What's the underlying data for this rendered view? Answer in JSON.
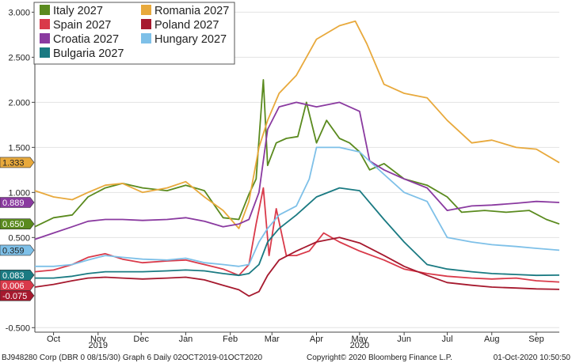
{
  "chart_data": {
    "type": "line",
    "ylim": [
      -0.55,
      3.1
    ],
    "y_ticks": [
      -0.5,
      0.5,
      1.0,
      1.5,
      2.0,
      2.5,
      3.0
    ],
    "y_tick_labels": [
      "-0.500",
      "0.500",
      "1.000",
      "1.500",
      "2.000",
      "2.500",
      "3.000"
    ],
    "x_range": [
      "2019-10-02",
      "2020-10-01"
    ],
    "months": [
      {
        "label": "Oct",
        "date": "2019-10-15"
      },
      {
        "label": "Nov",
        "date": "2019-11-15"
      },
      {
        "label": "Dec",
        "date": "2019-12-15"
      },
      {
        "label": "Jan",
        "date": "2020-01-15"
      },
      {
        "label": "Feb",
        "date": "2020-02-15"
      },
      {
        "label": "Mar",
        "date": "2020-03-15"
      },
      {
        "label": "Apr",
        "date": "2020-04-15"
      },
      {
        "label": "May",
        "date": "2020-05-15"
      },
      {
        "label": "Jun",
        "date": "2020-06-15"
      },
      {
        "label": "Jul",
        "date": "2020-07-15"
      },
      {
        "label": "Aug",
        "date": "2020-08-15"
      },
      {
        "label": "Sep",
        "date": "2020-09-15"
      }
    ],
    "year_labels": [
      {
        "label": "2019",
        "date": "2019-11-15"
      },
      {
        "label": "2020",
        "date": "2020-05-15"
      }
    ],
    "series": [
      {
        "name": "Italy 2027",
        "color": "#5a8a1e",
        "last": "0.650",
        "tag_text": "#ffffff",
        "points": [
          [
            "2019-10-02",
            0.62
          ],
          [
            "2019-10-15",
            0.72
          ],
          [
            "2019-10-28",
            0.75
          ],
          [
            "2019-11-08",
            0.95
          ],
          [
            "2019-11-20",
            1.05
          ],
          [
            "2019-12-02",
            1.1
          ],
          [
            "2019-12-16",
            1.05
          ],
          [
            "2020-01-02",
            1.02
          ],
          [
            "2020-01-15",
            1.08
          ],
          [
            "2020-01-28",
            1.02
          ],
          [
            "2020-02-10",
            0.72
          ],
          [
            "2020-02-21",
            0.7
          ],
          [
            "2020-02-28",
            0.98
          ],
          [
            "2020-03-04",
            1.15
          ],
          [
            "2020-03-09",
            2.25
          ],
          [
            "2020-03-12",
            1.3
          ],
          [
            "2020-03-18",
            1.55
          ],
          [
            "2020-03-25",
            1.6
          ],
          [
            "2020-04-02",
            1.62
          ],
          [
            "2020-04-08",
            2.0
          ],
          [
            "2020-04-15",
            1.55
          ],
          [
            "2020-04-22",
            1.8
          ],
          [
            "2020-05-01",
            1.6
          ],
          [
            "2020-05-08",
            1.55
          ],
          [
            "2020-05-15",
            1.45
          ],
          [
            "2020-05-22",
            1.25
          ],
          [
            "2020-06-01",
            1.32
          ],
          [
            "2020-06-15",
            1.15
          ],
          [
            "2020-07-01",
            1.08
          ],
          [
            "2020-07-15",
            0.95
          ],
          [
            "2020-07-25",
            0.78
          ],
          [
            "2020-08-10",
            0.8
          ],
          [
            "2020-08-25",
            0.78
          ],
          [
            "2020-09-10",
            0.8
          ],
          [
            "2020-09-22",
            0.7
          ],
          [
            "2020-10-01",
            0.65
          ]
        ]
      },
      {
        "name": "Romania 2027",
        "color": "#e8a93c",
        "last": "1.333",
        "tag_text": "#222222",
        "points": [
          [
            "2019-10-02",
            1.02
          ],
          [
            "2019-10-15",
            0.95
          ],
          [
            "2019-10-28",
            0.92
          ],
          [
            "2019-11-08",
            1.0
          ],
          [
            "2019-11-20",
            1.08
          ],
          [
            "2019-12-02",
            1.1
          ],
          [
            "2019-12-16",
            1.0
          ],
          [
            "2020-01-02",
            1.05
          ],
          [
            "2020-01-15",
            1.12
          ],
          [
            "2020-01-28",
            0.95
          ],
          [
            "2020-02-10",
            0.8
          ],
          [
            "2020-02-21",
            0.6
          ],
          [
            "2020-02-28",
            0.9
          ],
          [
            "2020-03-06",
            1.5
          ],
          [
            "2020-03-12",
            1.8
          ],
          [
            "2020-03-20",
            2.1
          ],
          [
            "2020-04-01",
            2.3
          ],
          [
            "2020-04-15",
            2.7
          ],
          [
            "2020-05-01",
            2.85
          ],
          [
            "2020-05-12",
            2.9
          ],
          [
            "2020-05-20",
            2.65
          ],
          [
            "2020-06-01",
            2.2
          ],
          [
            "2020-06-15",
            2.1
          ],
          [
            "2020-07-01",
            2.05
          ],
          [
            "2020-07-15",
            1.8
          ],
          [
            "2020-08-01",
            1.55
          ],
          [
            "2020-08-15",
            1.58
          ],
          [
            "2020-09-01",
            1.5
          ],
          [
            "2020-09-15",
            1.48
          ],
          [
            "2020-10-01",
            1.33
          ]
        ]
      },
      {
        "name": "Spain 2027",
        "color": "#d93a4a",
        "last": "0.006",
        "tag_text": "#ffffff",
        "points": [
          [
            "2019-10-02",
            0.12
          ],
          [
            "2019-10-15",
            0.14
          ],
          [
            "2019-10-28",
            0.2
          ],
          [
            "2019-11-08",
            0.28
          ],
          [
            "2019-11-20",
            0.32
          ],
          [
            "2019-12-02",
            0.26
          ],
          [
            "2019-12-16",
            0.22
          ],
          [
            "2020-01-02",
            0.24
          ],
          [
            "2020-01-15",
            0.25
          ],
          [
            "2020-01-28",
            0.2
          ],
          [
            "2020-02-10",
            0.15
          ],
          [
            "2020-02-21",
            0.08
          ],
          [
            "2020-02-28",
            0.2
          ],
          [
            "2020-03-04",
            0.65
          ],
          [
            "2020-03-09",
            1.05
          ],
          [
            "2020-03-13",
            0.3
          ],
          [
            "2020-03-18",
            0.82
          ],
          [
            "2020-03-25",
            0.3
          ],
          [
            "2020-04-01",
            0.3
          ],
          [
            "2020-04-10",
            0.35
          ],
          [
            "2020-04-20",
            0.55
          ],
          [
            "2020-05-01",
            0.45
          ],
          [
            "2020-05-15",
            0.35
          ],
          [
            "2020-06-01",
            0.25
          ],
          [
            "2020-06-15",
            0.15
          ],
          [
            "2020-07-01",
            0.1
          ],
          [
            "2020-07-15",
            0.07
          ],
          [
            "2020-08-01",
            0.05
          ],
          [
            "2020-08-15",
            0.04
          ],
          [
            "2020-09-01",
            0.05
          ],
          [
            "2020-09-15",
            0.02
          ],
          [
            "2020-10-01",
            0.006
          ]
        ]
      },
      {
        "name": "Poland 2027",
        "color": "#a6192e",
        "last": "-0.075",
        "tag_text": "#ffffff",
        "points": [
          [
            "2019-10-02",
            -0.05
          ],
          [
            "2019-10-15",
            -0.02
          ],
          [
            "2019-10-28",
            0.02
          ],
          [
            "2019-11-08",
            0.05
          ],
          [
            "2019-11-20",
            0.06
          ],
          [
            "2019-12-02",
            0.05
          ],
          [
            "2019-12-16",
            0.04
          ],
          [
            "2020-01-02",
            0.05
          ],
          [
            "2020-01-15",
            0.06
          ],
          [
            "2020-01-28",
            0.03
          ],
          [
            "2020-02-10",
            -0.03
          ],
          [
            "2020-02-21",
            -0.08
          ],
          [
            "2020-02-28",
            -0.15
          ],
          [
            "2020-03-06",
            -0.1
          ],
          [
            "2020-03-12",
            0.08
          ],
          [
            "2020-03-20",
            0.25
          ],
          [
            "2020-04-01",
            0.35
          ],
          [
            "2020-04-15",
            0.45
          ],
          [
            "2020-05-01",
            0.5
          ],
          [
            "2020-05-15",
            0.44
          ],
          [
            "2020-06-01",
            0.3
          ],
          [
            "2020-06-15",
            0.18
          ],
          [
            "2020-07-01",
            0.08
          ],
          [
            "2020-07-15",
            0.0
          ],
          [
            "2020-08-01",
            -0.03
          ],
          [
            "2020-08-15",
            -0.05
          ],
          [
            "2020-09-01",
            -0.06
          ],
          [
            "2020-09-15",
            -0.07
          ],
          [
            "2020-10-01",
            -0.075
          ]
        ]
      },
      {
        "name": "Croatia 2027",
        "color": "#8a3aa0",
        "last": "0.889",
        "tag_text": "#ffffff",
        "points": [
          [
            "2019-10-02",
            0.48
          ],
          [
            "2019-10-15",
            0.55
          ],
          [
            "2019-10-28",
            0.62
          ],
          [
            "2019-11-08",
            0.68
          ],
          [
            "2019-11-20",
            0.7
          ],
          [
            "2019-12-02",
            0.7
          ],
          [
            "2019-12-16",
            0.69
          ],
          [
            "2020-01-02",
            0.7
          ],
          [
            "2020-01-15",
            0.72
          ],
          [
            "2020-01-28",
            0.68
          ],
          [
            "2020-02-10",
            0.62
          ],
          [
            "2020-02-21",
            0.65
          ],
          [
            "2020-02-28",
            0.7
          ],
          [
            "2020-03-06",
            1.0
          ],
          [
            "2020-03-12",
            1.7
          ],
          [
            "2020-03-20",
            1.95
          ],
          [
            "2020-04-01",
            2.0
          ],
          [
            "2020-04-15",
            1.95
          ],
          [
            "2020-05-01",
            2.0
          ],
          [
            "2020-05-15",
            1.9
          ],
          [
            "2020-05-22",
            1.35
          ],
          [
            "2020-06-01",
            1.25
          ],
          [
            "2020-06-15",
            1.15
          ],
          [
            "2020-07-01",
            1.05
          ],
          [
            "2020-07-15",
            0.8
          ],
          [
            "2020-08-01",
            0.85
          ],
          [
            "2020-08-15",
            0.86
          ],
          [
            "2020-09-01",
            0.88
          ],
          [
            "2020-09-15",
            0.9
          ],
          [
            "2020-10-01",
            0.889
          ]
        ]
      },
      {
        "name": "Hungary 2027",
        "color": "#7ec0e8",
        "last": "0.359",
        "tag_text": "#222222",
        "points": [
          [
            "2019-10-02",
            0.18
          ],
          [
            "2019-10-15",
            0.18
          ],
          [
            "2019-10-28",
            0.2
          ],
          [
            "2019-11-08",
            0.25
          ],
          [
            "2019-11-20",
            0.3
          ],
          [
            "2019-12-02",
            0.28
          ],
          [
            "2019-12-16",
            0.26
          ],
          [
            "2020-01-02",
            0.25
          ],
          [
            "2020-01-15",
            0.27
          ],
          [
            "2020-01-28",
            0.22
          ],
          [
            "2020-02-10",
            0.2
          ],
          [
            "2020-02-21",
            0.18
          ],
          [
            "2020-02-28",
            0.2
          ],
          [
            "2020-03-06",
            0.45
          ],
          [
            "2020-03-12",
            0.6
          ],
          [
            "2020-03-20",
            0.75
          ],
          [
            "2020-04-01",
            0.85
          ],
          [
            "2020-04-10",
            1.15
          ],
          [
            "2020-04-15",
            1.5
          ],
          [
            "2020-05-01",
            1.5
          ],
          [
            "2020-05-15",
            1.45
          ],
          [
            "2020-06-01",
            1.2
          ],
          [
            "2020-06-15",
            1.0
          ],
          [
            "2020-07-01",
            0.9
          ],
          [
            "2020-07-15",
            0.5
          ],
          [
            "2020-08-01",
            0.45
          ],
          [
            "2020-08-15",
            0.42
          ],
          [
            "2020-09-01",
            0.4
          ],
          [
            "2020-09-15",
            0.38
          ],
          [
            "2020-10-01",
            0.359
          ]
        ]
      },
      {
        "name": "Bulgaria 2027",
        "color": "#1a7a82",
        "last": "0.083",
        "tag_text": "#ffffff",
        "points": [
          [
            "2019-10-02",
            0.05
          ],
          [
            "2019-10-15",
            0.05
          ],
          [
            "2019-10-28",
            0.07
          ],
          [
            "2019-11-08",
            0.1
          ],
          [
            "2019-11-20",
            0.12
          ],
          [
            "2019-12-02",
            0.12
          ],
          [
            "2019-12-16",
            0.12
          ],
          [
            "2020-01-02",
            0.13
          ],
          [
            "2020-01-15",
            0.14
          ],
          [
            "2020-01-28",
            0.13
          ],
          [
            "2020-02-10",
            0.1
          ],
          [
            "2020-02-21",
            0.08
          ],
          [
            "2020-02-28",
            0.1
          ],
          [
            "2020-03-06",
            0.2
          ],
          [
            "2020-03-12",
            0.45
          ],
          [
            "2020-03-20",
            0.6
          ],
          [
            "2020-04-01",
            0.75
          ],
          [
            "2020-04-15",
            0.95
          ],
          [
            "2020-05-01",
            1.05
          ],
          [
            "2020-05-15",
            1.02
          ],
          [
            "2020-06-01",
            0.7
          ],
          [
            "2020-06-15",
            0.45
          ],
          [
            "2020-07-01",
            0.2
          ],
          [
            "2020-07-15",
            0.15
          ],
          [
            "2020-08-01",
            0.12
          ],
          [
            "2020-08-15",
            0.1
          ],
          [
            "2020-09-01",
            0.09
          ],
          [
            "2020-09-15",
            0.08
          ],
          [
            "2020-10-01",
            0.083
          ]
        ]
      }
    ],
    "legend_layout": "top-left",
    "footer": {
      "left": "BJ948280 Corp (DBR 0 08/15/30) Graph 6  Daily 02OCT2019-01OCT2020",
      "center": "Copyright© 2020 Bloomberg Finance L.P.",
      "right": "01-Oct-2020 10:50:50"
    }
  }
}
